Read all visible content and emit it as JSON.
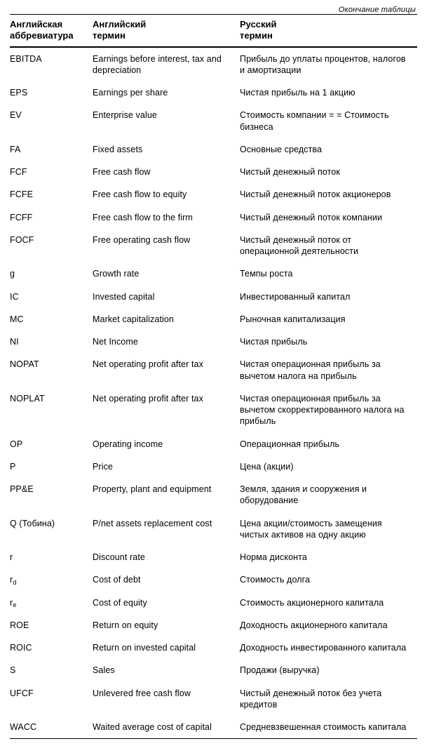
{
  "caption": "Окончание таблицы",
  "columns": {
    "abbr_line1": "Английская",
    "abbr_line2": "аббревиатура",
    "en_line1": "Английский",
    "en_line2": "термин",
    "ru_line1": "Русский",
    "ru_line2": "термин"
  },
  "colors": {
    "background": "#ffffff",
    "text": "#000000",
    "rule": "#000000"
  },
  "fonts": {
    "header_weight": "700",
    "body_size_pt": 9.5,
    "header_size_pt": 10
  },
  "rows": [
    {
      "abbr": "EBITDA",
      "en": "Earnings before interest, tax and depreciation",
      "ru": "Прибыль до уплаты процентов, налогов и амортизации"
    },
    {
      "abbr": "EPS",
      "en": "Earnings per share",
      "ru": "Чистая прибыль на 1 акцию"
    },
    {
      "abbr": "EV",
      "en": "Enterprise value",
      "ru": "Стоимость компании = = Стоимость бизнеса"
    },
    {
      "abbr": "FA",
      "en": "Fixed assets",
      "ru": "Основные средства"
    },
    {
      "abbr": "FCF",
      "en": "Free cash flow",
      "ru": "Чистый денежный поток"
    },
    {
      "abbr": "FCFE",
      "en": "Free cash flow to equity",
      "ru": "Чистый денежный поток акционеров"
    },
    {
      "abbr": "FCFF",
      "en": "Free cash flow to the firm",
      "ru": "Чистый денежный поток компании"
    },
    {
      "abbr": "FOCF",
      "en": "Free operating cash flow",
      "ru": "Чистый денежный поток от операционной деятельности"
    },
    {
      "abbr": "g",
      "en": "Growth rate",
      "ru": "Темпы роста"
    },
    {
      "abbr": "IC",
      "en": "Invested capital",
      "ru": "Инвестированный капитал"
    },
    {
      "abbr": "MC",
      "en": "Market capitalization",
      "ru": "Рыночная капитализация"
    },
    {
      "abbr": "NI",
      "en": "Net Income",
      "ru": "Чистая прибыль"
    },
    {
      "abbr": "NOPAT",
      "en": "Net operating profit after tax",
      "ru": "Чистая операционная прибыль за вычетом налога на прибыль"
    },
    {
      "abbr": "NOPLAT",
      "en": "Net operating profit after tax",
      "ru": "Чистая операционная прибыль за вычетом скорректированного налога на прибыль"
    },
    {
      "abbr": "OP",
      "en": "Operating income",
      "ru": "Операционная прибыль"
    },
    {
      "abbr": "P",
      "en": "Price",
      "ru": "Цена (акции)"
    },
    {
      "abbr": "PP&E",
      "en": "Property, plant and equipment",
      "ru": "Земля, здания и сооружения и оборудование"
    },
    {
      "abbr": "Q (Тобина)",
      "en": "P/net assets replacement cost",
      "ru": "Цена акции/стоимость замещения чистых активов на одну акцию"
    },
    {
      "abbr": "r",
      "en": "Discount rate",
      "ru": "Норма дисконта"
    },
    {
      "abbr": "r_d",
      "abbr_html": "r<sub>d</sub>",
      "en": "Cost of debt",
      "ru": "Стоимость долга"
    },
    {
      "abbr": "r_e",
      "abbr_html": "r<sub>e</sub>",
      "en": "Cost of equity",
      "ru": "Стоимость акционерного капитала"
    },
    {
      "abbr": "ROE",
      "en": "Return on equity",
      "ru": "Доходность акционерного капитала"
    },
    {
      "abbr": "ROIC",
      "en": "Return on invested capital",
      "ru": "Доходность инвестированного капитала"
    },
    {
      "abbr": "S",
      "en": "Sales",
      "ru": "Продажи (выручка)"
    },
    {
      "abbr": "UFCF",
      "en": "Unlevered free cash flow",
      "ru": "Чистый денежный поток без учета кредитов"
    },
    {
      "abbr": "WACC",
      "en": "Waited average cost of capital",
      "ru": "Средневзвешенная стоимость капитала"
    }
  ]
}
